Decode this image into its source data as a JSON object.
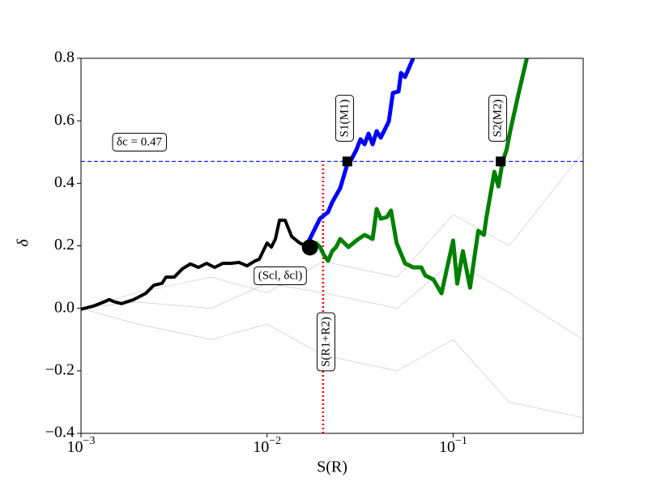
{
  "chart_data": {
    "type": "line",
    "x_label": "S(R)",
    "y_label": "δ",
    "xscale": "log",
    "xlim": [
      0.001,
      0.5
    ],
    "ylim": [
      -0.4,
      0.8
    ],
    "xticks": [
      {
        "value": 0.001,
        "label": "10",
        "exponent": "−3"
      },
      {
        "value": 0.01,
        "label": "10",
        "exponent": "−2"
      },
      {
        "value": 0.1,
        "label": "10",
        "exponent": "−1"
      }
    ],
    "yticks": [
      {
        "value": -0.4,
        "label": "−0.4"
      },
      {
        "value": -0.2,
        "label": "−0.2"
      },
      {
        "value": 0,
        "label": "0.0"
      },
      {
        "value": 0.2,
        "label": "0.2"
      },
      {
        "value": 0.4,
        "label": "0.4"
      },
      {
        "value": 0.6,
        "label": "0.6"
      },
      {
        "value": 0.8,
        "label": "0.8"
      }
    ],
    "series": [
      {
        "color": "#999999",
        "width": 0.6,
        "x": [
          0.001,
          0.002,
          0.005,
          0.01,
          0.02,
          0.05,
          0.1,
          0.2,
          0.5
        ],
        "values": [
          0,
          0.05,
          0.1,
          0.05,
          0.15,
          0.1,
          0.3,
          0.2,
          0.5
        ]
      },
      {
        "color": "#999999",
        "width": 0.6,
        "x": [
          0.001,
          0.002,
          0.005,
          0.01,
          0.02,
          0.05,
          0.1,
          0.2,
          0.5
        ],
        "values": [
          0,
          -0.05,
          -0.1,
          -0.05,
          -0.15,
          -0.2,
          -0.1,
          -0.3,
          -0.35
        ]
      },
      {
        "color": "#999999",
        "width": 0.6,
        "x": [
          0.001,
          0.002,
          0.005,
          0.01,
          0.02,
          0.05,
          0.1,
          0.2,
          0.5
        ],
        "values": [
          0,
          0.02,
          0,
          0.08,
          0.05,
          0,
          0.15,
          0.05,
          -0.1
        ]
      },
      {
        "color": "#000000",
        "width": 4,
        "x": [
          0.001,
          0.001162,
          0.001285,
          0.00142,
          0.001493,
          0.00165,
          0.00192,
          0.00223,
          0.002465,
          0.002725,
          0.002865,
          0.00317,
          0.0035,
          0.00387,
          0.00428,
          0.00473,
          0.00523,
          0.00578,
          0.00639,
          0.00706,
          0.0078,
          0.00863,
          0.00907,
          0.01,
          0.01055,
          0.01109,
          0.01166,
          0.0125,
          0.01355,
          0.01498,
          0.01607
        ],
        "values": [
          -0.003,
          0.007,
          0.017,
          0.028,
          0.022,
          0.015,
          0.028,
          0.048,
          0.074,
          0.08,
          0.1,
          0.1,
          0.126,
          0.142,
          0.131,
          0.144,
          0.131,
          0.144,
          0.144,
          0.147,
          0.136,
          0.152,
          0.157,
          0.209,
          0.196,
          0.222,
          0.282,
          0.282,
          0.23,
          0.209,
          0.201
        ]
      },
      {
        "color": "#0000ff",
        "width": 5,
        "x": [
          0.01607,
          0.01656,
          0.0174,
          0.01925,
          0.02128,
          0.02237,
          0.02473,
          0.02679,
          0.02789,
          0.0302,
          0.03177,
          0.0334,
          0.03512,
          0.03692,
          0.03882,
          0.04081,
          0.04291,
          0.04511,
          0.04743,
          0.05089,
          0.05244,
          0.05513,
          0.06095
        ],
        "values": [
          0.201,
          0.209,
          0.235,
          0.287,
          0.308,
          0.339,
          0.385,
          0.455,
          0.468,
          0.507,
          0.541,
          0.525,
          0.559,
          0.525,
          0.567,
          0.546,
          0.572,
          0.598,
          0.689,
          0.694,
          0.753,
          0.74,
          0.8
        ]
      },
      {
        "color": "#008000",
        "width": 5,
        "x": [
          0.01607,
          0.0174,
          0.01832,
          0.01925,
          0.02022,
          0.02128,
          0.02237,
          0.02351,
          0.02473,
          0.026,
          0.02734,
          0.0302,
          0.0334,
          0.03692,
          0.03882,
          0.04081,
          0.04407,
          0.04634,
          0.0497,
          0.05513,
          0.06095,
          0.0674,
          0.07086,
          0.07836,
          0.08662,
          0.0929,
          0.1,
          0.1052,
          0.1128,
          0.1233,
          0.1364,
          0.1463,
          0.1506,
          0.1666,
          0.1751,
          0.1841,
          0.1936,
          0.2035,
          0.225,
          0.2488
        ],
        "values": [
          0.201,
          0.204,
          0.209,
          0.196,
          0.17,
          0.152,
          0.183,
          0.196,
          0.222,
          0.209,
          0.196,
          0.217,
          0.235,
          0.222,
          0.318,
          0.287,
          0.292,
          0.313,
          0.209,
          0.144,
          0.131,
          0.131,
          0.105,
          0.092,
          0.048,
          0.131,
          0.217,
          0.079,
          0.183,
          0.066,
          0.248,
          0.235,
          0.287,
          0.437,
          0.39,
          0.468,
          0.507,
          0.572,
          0.689,
          0.8
        ]
      }
    ],
    "points": [
      {
        "x": 0.017,
        "y": 0.195,
        "marker": "circle",
        "color": "#000000"
      },
      {
        "x": 0.027,
        "y": 0.47,
        "marker": "square",
        "color": "#000000"
      },
      {
        "x": 0.18,
        "y": 0.47,
        "marker": "square",
        "color": "#000000"
      }
    ],
    "hline": {
      "value": 0.47,
      "color": "#0000ff"
    },
    "vline": {
      "x": 0.02,
      "ymax": 0.47,
      "color": "#ff0000"
    },
    "annotations": [
      "δc = 0.47",
      "S1(M1)",
      "S2(M2)",
      "(Scl, δcl)",
      "S(R1+R2)"
    ]
  }
}
